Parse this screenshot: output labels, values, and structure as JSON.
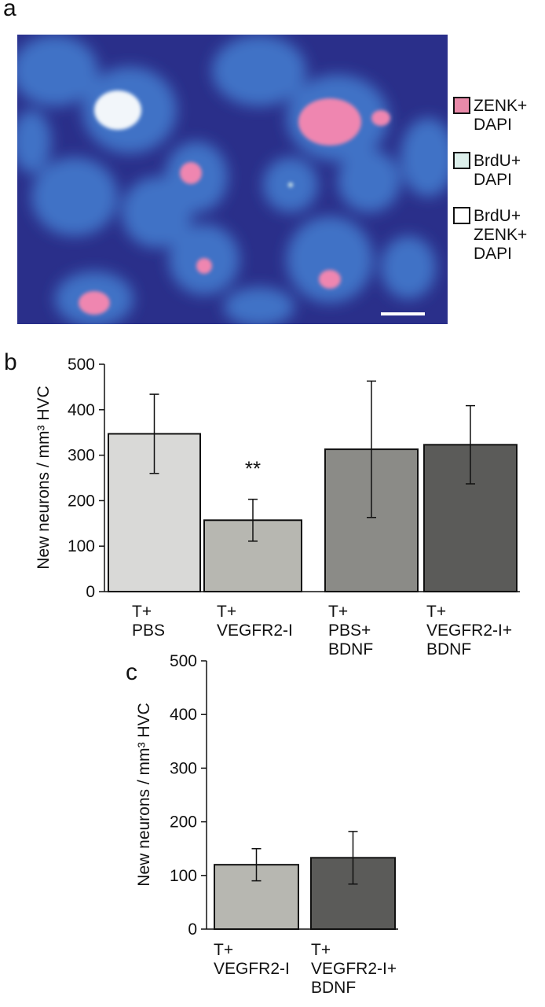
{
  "image_panel": {
    "label": "a",
    "legend": [
      {
        "label": "ZENK+\nDAPI",
        "color": "#e98aa9"
      },
      {
        "label": "BrdU+\nDAPI",
        "color": "#dcefeb"
      },
      {
        "label": "BrdU+\nZENK+\nDAPI",
        "color": "#ffffff"
      }
    ]
  },
  "chart_data": [
    {
      "type": "bar",
      "label": "b",
      "y_label": "New neurons / mm³ HVC",
      "categories": [
        "T+\nPBS",
        "T+\nVEGFR2-I",
        "T+\nPBS+\nBDNF",
        "T+\nVEGFR2-I+\nBDNF"
      ],
      "values": [
        347,
        157,
        313,
        323
      ],
      "errors": [
        87,
        46,
        150,
        86
      ],
      "colors": [
        "#d9d9d7",
        "#b7b7b1",
        "#8b8b87",
        "#5b5b59"
      ],
      "annotation": "**",
      "ylim": [
        0,
        500
      ],
      "yticks": [
        0,
        100,
        200,
        300,
        400,
        500
      ]
    },
    {
      "type": "bar",
      "label": "c",
      "y_label": "New neurons / mm³ HVC",
      "categories": [
        "T+\nVEGFR2-I",
        "T+\nVEGFR2-I+\nBDNF"
      ],
      "values": [
        120,
        133
      ],
      "errors": [
        30,
        49
      ],
      "colors": [
        "#b7b7b1",
        "#5b5b59"
      ],
      "ylim": [
        0,
        500
      ],
      "yticks": [
        0,
        100,
        200,
        300,
        400,
        500
      ]
    }
  ]
}
